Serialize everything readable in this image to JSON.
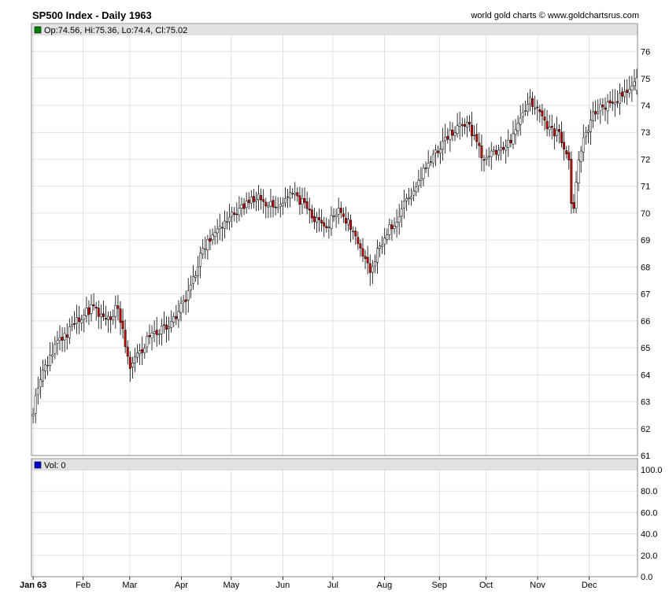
{
  "header": {
    "title": "SP500 Index - Daily 1963",
    "credit": "world gold charts © www.goldchartsrus.com"
  },
  "price_panel": {
    "legend": "Op:74.56, Hi:75.36, Lo:74.4, Cl:75.02",
    "legend_color": "#008000"
  },
  "volume_panel": {
    "legend": "Vol: 0",
    "legend_color": "#0000cc"
  },
  "colors": {
    "up": "#000000",
    "down": "#cc0000",
    "grid": "#cfd8d8",
    "legend_bg": "#e2e2e2"
  },
  "chart_data": [
    {
      "type": "candlestick",
      "title": "SP500 Index - Daily 1963",
      "x_tick_labels": [
        "Jan 63",
        "Feb",
        "Mar",
        "Apr",
        "May",
        "Jun",
        "Jul",
        "Aug",
        "Sep",
        "Oct",
        "Nov",
        "Dec"
      ],
      "y_tick_labels": [
        "61",
        "62",
        "63",
        "64",
        "65",
        "66",
        "67",
        "68",
        "69",
        "70",
        "71",
        "72",
        "73",
        "74",
        "75",
        "76"
      ],
      "ylim": [
        61,
        76.6
      ],
      "grid": true,
      "last_bar": {
        "open": 74.56,
        "high": 75.36,
        "low": 74.4,
        "close": 75.02
      },
      "close_path": [
        [
          "1963-01-02",
          62.7
        ],
        [
          "1963-01-07",
          64.1
        ],
        [
          "1963-01-15",
          65.0
        ],
        [
          "1963-01-31",
          66.2
        ],
        [
          "1963-02-07",
          66.5
        ],
        [
          "1963-02-15",
          66.0
        ],
        [
          "1963-02-22",
          66.5
        ],
        [
          "1963-03-01",
          64.2
        ],
        [
          "1963-03-15",
          65.6
        ],
        [
          "1963-03-25",
          65.8
        ],
        [
          "1963-04-05",
          67.0
        ],
        [
          "1963-04-15",
          68.8
        ],
        [
          "1963-04-30",
          69.8
        ],
        [
          "1963-05-15",
          70.6
        ],
        [
          "1963-05-31",
          70.2
        ],
        [
          "1963-06-05",
          70.8
        ],
        [
          "1963-06-15",
          70.3
        ],
        [
          "1963-06-25",
          69.4
        ],
        [
          "1963-07-05",
          70.1
        ],
        [
          "1963-07-15",
          69.2
        ],
        [
          "1963-07-23",
          67.9
        ],
        [
          "1963-07-31",
          69.0
        ],
        [
          "1963-08-15",
          70.5
        ],
        [
          "1963-08-31",
          72.2
        ],
        [
          "1963-09-10",
          73.0
        ],
        [
          "1963-09-20",
          73.3
        ],
        [
          "1963-09-30",
          72.0
        ],
        [
          "1963-10-15",
          72.6
        ],
        [
          "1963-10-28",
          74.2
        ],
        [
          "1963-11-05",
          73.3
        ],
        [
          "1963-11-15",
          72.8
        ],
        [
          "1963-11-20",
          71.9
        ],
        [
          "1963-11-22",
          69.6
        ],
        [
          "1963-11-26",
          72.2
        ],
        [
          "1963-12-05",
          73.8
        ],
        [
          "1963-12-20",
          74.3
        ],
        [
          "1963-12-31",
          75.02
        ]
      ]
    },
    {
      "type": "bar",
      "title": "Vol: 0",
      "y_tick_labels": [
        "0.0",
        "20.0",
        "40.0",
        "60.0",
        "80.0",
        "100.0"
      ],
      "ylim": [
        0,
        100
      ],
      "values": []
    }
  ]
}
